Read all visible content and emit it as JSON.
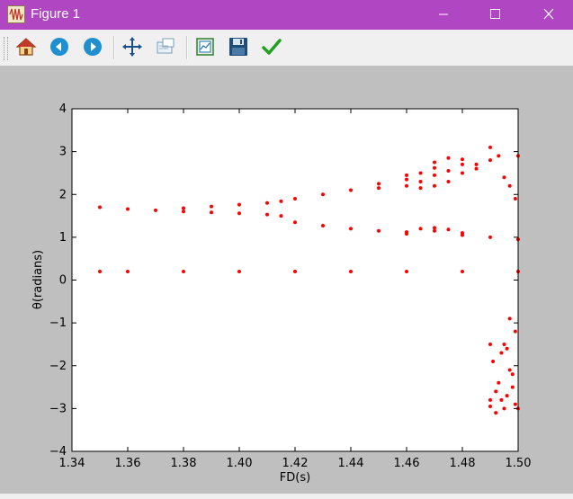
{
  "window": {
    "title": "Figure 1",
    "titlebar_color": "#b146c2",
    "controls": [
      "minimize",
      "maximize",
      "close"
    ]
  },
  "toolbar": {
    "buttons": [
      {
        "name": "home",
        "icon": "home-icon"
      },
      {
        "name": "back",
        "icon": "arrow-left-icon"
      },
      {
        "name": "forward",
        "icon": "arrow-right-icon"
      },
      {
        "name": "pan",
        "icon": "move-arrows-icon"
      },
      {
        "name": "zoom",
        "icon": "zoom-rect-icon"
      },
      {
        "name": "subplots",
        "icon": "subplots-icon"
      },
      {
        "name": "save",
        "icon": "floppy-disk-icon"
      },
      {
        "name": "edit-curves",
        "icon": "checkmark-icon"
      }
    ]
  },
  "chart_data": {
    "type": "scatter",
    "title": "",
    "xlabel": "FD(s)",
    "ylabel": "θ(radians)",
    "xlim": [
      1.34,
      1.5
    ],
    "ylim": [
      -4,
      4
    ],
    "xticks": [
      "1.34",
      "1.36",
      "1.38",
      "1.40",
      "1.42",
      "1.44",
      "1.46",
      "1.48",
      "1.50"
    ],
    "yticks": [
      "4",
      "3",
      "2",
      "1",
      "0",
      "−1",
      "−2",
      "−3",
      "−4"
    ],
    "grid": false,
    "marker_color": "#ff0000",
    "series": [
      {
        "points": [
          [
            1.35,
            0.2
          ],
          [
            1.36,
            0.2
          ],
          [
            1.38,
            0.2
          ],
          [
            1.4,
            0.2
          ],
          [
            1.42,
            0.2
          ],
          [
            1.44,
            0.2
          ],
          [
            1.46,
            0.2
          ],
          [
            1.48,
            0.2
          ],
          [
            1.5,
            0.2
          ],
          [
            1.35,
            1.7
          ],
          [
            1.36,
            1.66
          ],
          [
            1.37,
            1.63
          ],
          [
            1.38,
            1.6
          ],
          [
            1.39,
            1.58
          ],
          [
            1.4,
            1.56
          ],
          [
            1.41,
            1.53
          ],
          [
            1.415,
            1.5
          ],
          [
            1.38,
            1.68
          ],
          [
            1.39,
            1.72
          ],
          [
            1.4,
            1.76
          ],
          [
            1.41,
            1.8
          ],
          [
            1.415,
            1.84
          ],
          [
            1.42,
            1.9
          ],
          [
            1.43,
            2.0
          ],
          [
            1.44,
            2.1
          ],
          [
            1.45,
            2.25
          ],
          [
            1.46,
            2.45
          ],
          [
            1.47,
            2.62
          ],
          [
            1.48,
            2.7
          ],
          [
            1.49,
            2.8
          ],
          [
            1.5,
            2.9
          ],
          [
            1.45,
            2.15
          ],
          [
            1.46,
            2.2
          ],
          [
            1.465,
            2.3
          ],
          [
            1.47,
            2.45
          ],
          [
            1.475,
            2.55
          ],
          [
            1.46,
            2.35
          ],
          [
            1.465,
            2.5
          ],
          [
            1.47,
            2.75
          ],
          [
            1.475,
            2.85
          ],
          [
            1.48,
            2.82
          ],
          [
            1.485,
            2.7
          ],
          [
            1.465,
            2.15
          ],
          [
            1.47,
            2.2
          ],
          [
            1.475,
            2.3
          ],
          [
            1.48,
            2.5
          ],
          [
            1.485,
            2.6
          ],
          [
            1.42,
            1.35
          ],
          [
            1.43,
            1.27
          ],
          [
            1.44,
            1.2
          ],
          [
            1.45,
            1.15
          ],
          [
            1.46,
            1.12
          ],
          [
            1.47,
            1.15
          ],
          [
            1.48,
            1.1
          ],
          [
            1.49,
            1.0
          ],
          [
            1.5,
            0.95
          ],
          [
            1.46,
            1.08
          ],
          [
            1.465,
            1.2
          ],
          [
            1.47,
            1.22
          ],
          [
            1.475,
            1.18
          ],
          [
            1.48,
            1.05
          ],
          [
            1.49,
            3.1
          ],
          [
            1.493,
            2.9
          ],
          [
            1.495,
            2.4
          ],
          [
            1.497,
            2.2
          ],
          [
            1.499,
            1.9
          ],
          [
            1.49,
            -1.5
          ],
          [
            1.491,
            -1.9
          ],
          [
            1.493,
            -2.4
          ],
          [
            1.494,
            -2.8
          ],
          [
            1.495,
            -3.0
          ],
          [
            1.496,
            -1.6
          ],
          [
            1.497,
            -2.1
          ],
          [
            1.498,
            -2.5
          ],
          [
            1.499,
            -2.9
          ],
          [
            1.5,
            -3.0
          ],
          [
            1.49,
            -2.8
          ],
          [
            1.492,
            -3.1
          ],
          [
            1.494,
            -1.7
          ],
          [
            1.496,
            -2.7
          ],
          [
            1.498,
            -2.2
          ],
          [
            1.499,
            -1.2
          ],
          [
            1.497,
            -0.9
          ],
          [
            1.495,
            -1.5
          ],
          [
            1.492,
            -2.6
          ],
          [
            1.49,
            -2.95
          ]
        ]
      }
    ]
  }
}
